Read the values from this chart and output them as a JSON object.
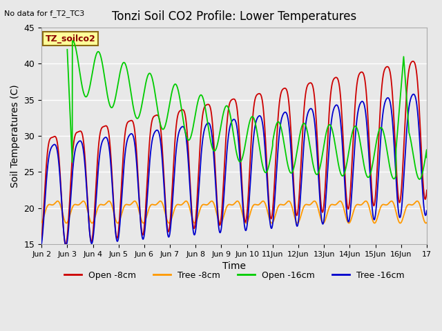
{
  "title": "Tonzi Soil CO2 Profile: Lower Temperatures",
  "no_data_text": "No data for f_T2_TC3",
  "legend_label_text": "TZ_soilco2",
  "xlabel": "Time",
  "ylabel": "Soil Temperatures (C)",
  "ylim": [
    15,
    45
  ],
  "yticks": [
    15,
    20,
    25,
    30,
    35,
    40,
    45
  ],
  "background_color": "#e8e8e8",
  "grid_color": "#ffffff",
  "line_colors": {
    "open8": "#cc0000",
    "tree8": "#ff9900",
    "open16": "#00cc00",
    "tree16": "#0000cc"
  },
  "legend_entries": [
    "Open -8cm",
    "Tree -8cm",
    "Open -16cm",
    "Tree -16cm"
  ],
  "xtick_labels": [
    "Jun 2",
    "Jun 3",
    "Jun 4",
    "Jun 5",
    "Jun 6",
    "Jun 7",
    "Jun 8",
    "Jun 9",
    "Jun 10",
    "11Jun",
    "12Jun",
    "13Jun",
    "14Jun",
    "15Jun",
    "16Jun",
    "17"
  ],
  "xtick_positions": [
    0,
    1,
    2,
    3,
    4,
    5,
    6,
    7,
    8,
    9,
    10,
    11,
    12,
    13,
    14,
    15
  ],
  "figsize": [
    6.4,
    4.8
  ],
  "dpi": 100
}
